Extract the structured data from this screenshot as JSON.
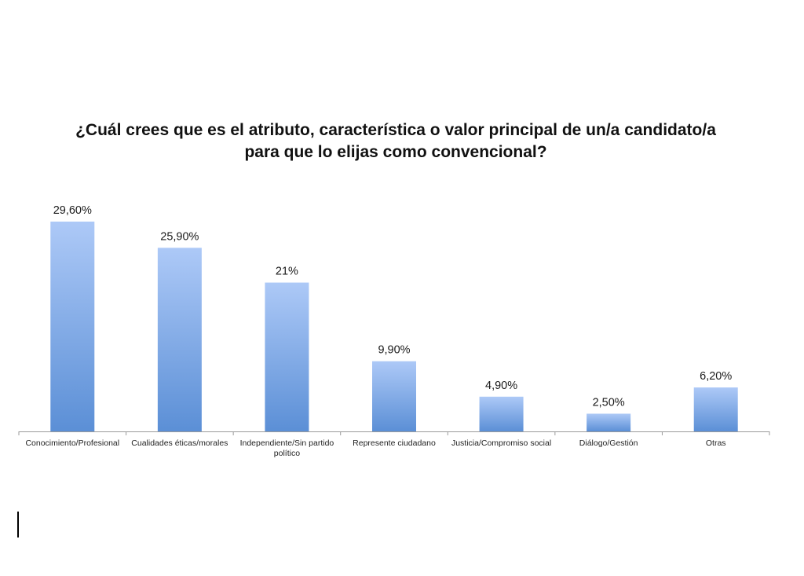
{
  "chart_data": {
    "type": "bar",
    "title_lines": [
      "¿Cuál crees que es el atributo, característica o valor principal de un/a candidato/a",
      "para que lo elijas como convencional?"
    ],
    "categories": [
      [
        "Conocimiento/Profesional"
      ],
      [
        "Cualidades éticas/morales"
      ],
      [
        "Independiente/Sin partido",
        "político"
      ],
      [
        "Represente ciudadano"
      ],
      [
        "Justicia/Compromiso social"
      ],
      [
        "Diálogo/Gestión"
      ],
      [
        "Otras"
      ]
    ],
    "values": [
      29.6,
      25.9,
      21,
      9.9,
      4.9,
      2.5,
      6.2
    ],
    "data_labels": [
      "29,60%",
      "25,90%",
      "21%",
      "9,90%",
      "4,90%",
      "2,50%",
      "6,20%"
    ],
    "ylim": [
      0,
      29.6
    ],
    "grid": false,
    "legend": "none",
    "bar_color_top": "#adc9f7",
    "bar_color_bottom": "#5b8fd6",
    "axis_color": "#9a9a9a"
  }
}
